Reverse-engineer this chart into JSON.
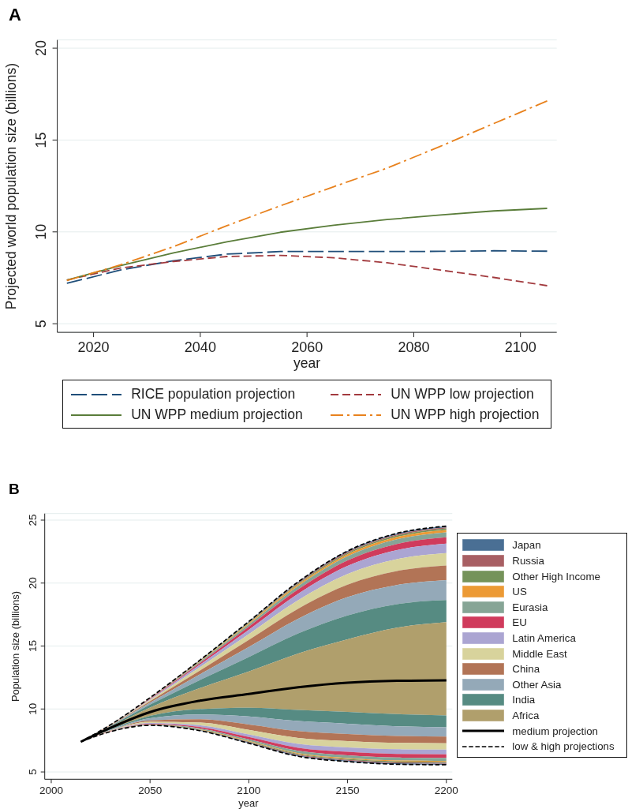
{
  "chart_data": [
    {
      "type": "line",
      "title": "A",
      "xlabel": "year",
      "ylabel": "Projected world population size (billions)",
      "x": [
        2015,
        2025,
        2035,
        2045,
        2055,
        2065,
        2075,
        2085,
        2095,
        2105
      ],
      "xlim": [
        2013.2,
        2106.8
      ],
      "ylim": [
        4.53,
        20.45
      ],
      "xticks": [
        2020,
        2040,
        2060,
        2080,
        2100
      ],
      "yticks": [
        5,
        10,
        15,
        20
      ],
      "grid": "y",
      "legend": "bottom",
      "series": [
        {
          "name": "RICE population projection",
          "color": "#1f4e79",
          "line_style": "longdash",
          "values": [
            7.2,
            7.92,
            8.43,
            8.79,
            8.93,
            8.93,
            8.93,
            8.94,
            8.97,
            8.95
          ]
        },
        {
          "name": "UN WPP low projection",
          "color": "#a23a3e",
          "line_style": "dashed",
          "values": [
            7.38,
            8.03,
            8.39,
            8.66,
            8.72,
            8.59,
            8.32,
            7.92,
            7.52,
            7.07
          ]
        },
        {
          "name": "UN WPP medium projection",
          "color": "#5a7d3a",
          "line_style": "solid",
          "values": [
            7.38,
            8.16,
            8.86,
            9.46,
            9.98,
            10.36,
            10.67,
            10.92,
            11.14,
            11.28
          ]
        },
        {
          "name": "UN WPP high projection",
          "color": "#e8821e",
          "line_style": "dashdot",
          "values": [
            7.35,
            8.2,
            9.2,
            10.34,
            11.42,
            12.46,
            13.47,
            14.66,
            15.9,
            17.13
          ]
        }
      ]
    },
    {
      "type": "area",
      "title": "B",
      "xlabel": "year",
      "ylabel": "Population size (billions)",
      "x": [
        2015,
        2030,
        2050,
        2075,
        2100,
        2125,
        2150,
        2175,
        2200
      ],
      "xlim": [
        1996.7,
        2203
      ],
      "ylim": [
        4.42,
        25.52
      ],
      "xticks": [
        2000,
        2050,
        2100,
        2150,
        2200
      ],
      "yticks": [
        5,
        10,
        15,
        20,
        25
      ],
      "grid": "y",
      "legend": "right",
      "series": [
        {
          "name": "Japan",
          "color": "#4a6f94",
          "values": [
            null,
            null,
            null,
            null,
            null,
            null,
            null,
            null,
            null
          ],
          "lower": [
            7.4,
            8.75,
            10.89,
            13.82,
            16.9,
            20.03,
            22.47,
            23.86,
            24.42
          ],
          "upper": [
            7.4,
            8.75,
            10.9,
            13.85,
            16.95,
            20.1,
            22.55,
            23.95,
            24.52
          ]
        },
        {
          "name": "Russia",
          "color": "#a85f63",
          "values": [
            null,
            null,
            null,
            null,
            null,
            null,
            null,
            null,
            null
          ],
          "lower": [
            7.4,
            8.75,
            10.88,
            13.8,
            16.86,
            19.97,
            22.39,
            23.77,
            24.34
          ],
          "upper": [
            7.4,
            8.75,
            10.89,
            13.82,
            16.9,
            20.03,
            22.47,
            23.86,
            24.42
          ]
        },
        {
          "name": "Other High Income",
          "color": "#75935a",
          "values": [
            null,
            null,
            null,
            null,
            null,
            null,
            null,
            null,
            null
          ],
          "lower": [
            7.4,
            8.74,
            10.87,
            13.77,
            16.81,
            19.89,
            22.29,
            23.66,
            24.21
          ],
          "upper": [
            7.4,
            8.75,
            10.88,
            13.8,
            16.86,
            19.97,
            22.39,
            23.77,
            24.34
          ]
        },
        {
          "name": "US",
          "color": "#ec9a35",
          "values": [
            null,
            null,
            null,
            null,
            null,
            null,
            null,
            null,
            null
          ],
          "lower": [
            7.4,
            8.74,
            10.85,
            13.72,
            16.72,
            19.77,
            22.13,
            23.48,
            24.03
          ],
          "upper": [
            7.4,
            8.74,
            10.87,
            13.77,
            16.81,
            19.89,
            22.29,
            23.66,
            24.21
          ]
        },
        {
          "name": "Eurasia",
          "color": "#86a596",
          "values": [
            null,
            null,
            null,
            null,
            null,
            null,
            null,
            null,
            null
          ],
          "lower": [
            7.4,
            8.73,
            10.82,
            13.62,
            16.54,
            19.5,
            21.8,
            23.11,
            23.64
          ],
          "upper": [
            7.4,
            8.74,
            10.85,
            13.72,
            16.72,
            19.77,
            22.13,
            23.48,
            24.03
          ]
        },
        {
          "name": "EU",
          "color": "#d03b5c",
          "values": [
            null,
            null,
            null,
            null,
            null,
            null,
            null,
            null,
            null
          ],
          "lower": [
            7.4,
            8.72,
            10.77,
            13.49,
            16.29,
            19.15,
            21.36,
            22.62,
            23.13
          ],
          "upper": [
            7.4,
            8.73,
            10.82,
            13.62,
            16.54,
            19.5,
            21.8,
            23.11,
            23.64
          ]
        },
        {
          "name": "Latin America",
          "color": "#aba5d2",
          "values": [
            null,
            null,
            null,
            null,
            null,
            null,
            null,
            null,
            null
          ],
          "lower": [
            7.4,
            8.71,
            10.7,
            13.29,
            15.94,
            18.64,
            20.72,
            21.9,
            22.38
          ],
          "upper": [
            7.4,
            8.72,
            10.77,
            13.49,
            16.29,
            19.15,
            21.36,
            22.62,
            23.13
          ]
        },
        {
          "name": "Middle East",
          "color": "#d8d39c",
          "values": [
            null,
            null,
            null,
            null,
            null,
            null,
            null,
            null,
            null
          ],
          "lower": [
            7.4,
            8.69,
            10.61,
            13.03,
            15.48,
            17.97,
            19.88,
            20.96,
            21.4
          ],
          "upper": [
            7.4,
            8.71,
            10.7,
            13.29,
            15.94,
            18.64,
            20.72,
            21.9,
            22.38
          ]
        },
        {
          "name": "China",
          "color": "#b27456",
          "values": [
            null,
            null,
            null,
            null,
            null,
            null,
            null,
            null,
            null
          ],
          "lower": [
            7.4,
            8.66,
            10.5,
            12.73,
            14.93,
            17.17,
            18.89,
            19.85,
            20.24
          ],
          "upper": [
            7.4,
            8.69,
            10.61,
            13.03,
            15.48,
            17.97,
            19.88,
            20.96,
            21.4
          ]
        },
        {
          "name": "Other Asia",
          "color": "#94a9b8",
          "values": [
            null,
            null,
            null,
            null,
            null,
            null,
            null,
            null,
            null
          ],
          "lower": [
            7.4,
            8.63,
            10.34,
            12.28,
            14.13,
            16.0,
            17.43,
            18.33,
            18.65
          ],
          "upper": [
            7.4,
            8.66,
            10.5,
            12.73,
            14.93,
            17.17,
            18.89,
            19.85,
            20.24
          ]
        },
        {
          "name": "India",
          "color": "#568b82",
          "values": [
            null,
            null,
            null,
            null,
            null,
            null,
            null,
            null,
            null
          ],
          "lower": [
            7.4,
            8.58,
            10.11,
            11.64,
            12.98,
            14.41,
            15.54,
            16.46,
            16.89
          ],
          "upper": [
            7.4,
            8.63,
            10.34,
            12.28,
            14.13,
            16.0,
            17.43,
            18.33,
            18.65
          ]
        },
        {
          "name": "Africa",
          "color": "#b09f6c",
          "values": [
            null,
            null,
            null,
            null,
            null,
            null,
            null,
            null,
            null
          ],
          "lower": [
            7.4,
            8.42,
            9.46,
            9.99,
            10.1,
            9.92,
            9.77,
            9.59,
            9.48
          ],
          "upper": [
            7.4,
            8.58,
            10.11,
            11.64,
            12.98,
            14.41,
            15.54,
            16.46,
            16.89
          ]
        },
        {
          "color": "#568b83",
          "values": [
            null,
            null,
            null,
            null,
            null,
            null,
            null,
            null,
            null
          ],
          "lower": [
            7.4,
            8.36,
            9.27,
            9.57,
            9.41,
            9.04,
            8.83,
            8.63,
            8.54
          ],
          "upper": [
            7.4,
            8.42,
            9.46,
            9.99,
            10.1,
            9.92,
            9.77,
            9.59,
            9.48
          ]
        },
        {
          "color": "#94a9b9",
          "values": [
            null,
            null,
            null,
            null,
            null,
            null,
            null,
            null,
            null
          ],
          "lower": [
            7.4,
            8.31,
            9.1,
            9.18,
            8.77,
            8.24,
            8.01,
            7.86,
            7.81
          ],
          "upper": [
            7.4,
            8.36,
            9.27,
            9.57,
            9.41,
            9.04,
            8.83,
            8.63,
            8.54
          ]
        },
        {
          "color": "#b27457",
          "values": [
            null,
            null,
            null,
            null,
            null,
            null,
            null,
            null,
            null
          ],
          "lower": [
            7.4,
            8.28,
            8.98,
            8.92,
            8.34,
            7.7,
            7.45,
            7.31,
            7.28
          ],
          "upper": [
            7.4,
            8.31,
            9.1,
            9.18,
            8.77,
            8.24,
            8.01,
            7.86,
            7.81
          ]
        },
        {
          "color": "#d8d39d",
          "values": [
            null,
            null,
            null,
            null,
            null,
            null,
            null,
            null,
            null
          ],
          "lower": [
            7.4,
            8.25,
            8.89,
            8.71,
            7.98,
            7.23,
            6.95,
            6.8,
            6.78
          ],
          "upper": [
            7.4,
            8.28,
            8.98,
            8.92,
            8.34,
            7.7,
            7.45,
            7.31,
            7.28
          ]
        },
        {
          "color": "#aba5d3",
          "values": [
            null,
            null,
            null,
            null,
            null,
            null,
            null,
            null,
            null
          ],
          "lower": [
            7.4,
            8.24,
            8.83,
            8.57,
            7.77,
            6.92,
            6.6,
            6.43,
            6.4
          ],
          "upper": [
            7.4,
            8.25,
            8.89,
            8.71,
            7.98,
            7.23,
            6.95,
            6.8,
            6.78
          ]
        },
        {
          "color": "#d03b5d",
          "values": [
            null,
            null,
            null,
            null,
            null,
            null,
            null,
            null,
            null
          ],
          "lower": [
            7.4,
            8.22,
            8.78,
            8.47,
            7.59,
            6.68,
            6.32,
            6.14,
            6.11
          ],
          "upper": [
            7.4,
            8.24,
            8.83,
            8.57,
            7.77,
            6.92,
            6.6,
            6.43,
            6.4
          ]
        },
        {
          "color": "#86a597",
          "values": [
            null,
            null,
            null,
            null,
            null,
            null,
            null,
            null,
            null
          ],
          "lower": [
            7.4,
            8.21,
            8.75,
            8.39,
            7.46,
            6.49,
            6.1,
            5.91,
            5.87
          ],
          "upper": [
            7.4,
            8.22,
            8.78,
            8.47,
            7.59,
            6.68,
            6.32,
            6.14,
            6.11
          ]
        },
        {
          "color": "#ec9a36",
          "values": [
            null,
            null,
            null,
            null,
            null,
            null,
            null,
            null,
            null
          ],
          "lower": [
            7.4,
            8.21,
            8.74,
            8.36,
            7.41,
            6.43,
            6.03,
            5.84,
            5.8
          ],
          "upper": [
            7.4,
            8.21,
            8.75,
            8.39,
            7.46,
            6.49,
            6.1,
            5.91,
            5.87
          ]
        },
        {
          "color": "#75935b",
          "values": [
            null,
            null,
            null,
            null,
            null,
            null,
            null,
            null,
            null
          ],
          "lower": [
            7.4,
            8.21,
            8.72,
            8.33,
            7.37,
            6.36,
            5.96,
            5.76,
            5.72
          ],
          "upper": [
            7.4,
            8.21,
            8.74,
            8.36,
            7.41,
            6.43,
            6.03,
            5.84,
            5.8
          ]
        },
        {
          "color": "#a85f64",
          "values": [
            null,
            null,
            null,
            null,
            null,
            null,
            null,
            null,
            null
          ],
          "lower": [
            7.4,
            8.2,
            8.71,
            8.31,
            7.33,
            6.31,
            5.9,
            5.69,
            5.65
          ],
          "upper": [
            7.4,
            8.21,
            8.72,
            8.33,
            7.37,
            6.36,
            5.96,
            5.76,
            5.72
          ]
        },
        {
          "color": "#4a6f95",
          "values": [
            null,
            null,
            null,
            null,
            null,
            null,
            null,
            null,
            null
          ],
          "lower": [
            7.4,
            8.2,
            8.7,
            8.28,
            7.28,
            6.24,
            5.82,
            5.61,
            5.57
          ],
          "upper": [
            7.4,
            8.2,
            8.71,
            8.31,
            7.33,
            6.31,
            5.9,
            5.69,
            5.65
          ]
        },
        {
          "type": "line",
          "name": "medium projection",
          "color": "#000000",
          "line_style": "solid",
          "values": [
            7.4,
            8.5,
            9.75,
            10.65,
            11.19,
            11.73,
            12.09,
            12.24,
            12.28
          ]
        },
        {
          "type": "line",
          "name": "low & high projections",
          "color": "#000000",
          "line_style": "dashed",
          "values": [
            7.4,
            8.75,
            10.9,
            13.85,
            16.95,
            20.1,
            22.55,
            23.95,
            24.52
          ]
        },
        {
          "type": "line",
          "color": "#000000",
          "line_style": "dashed",
          "values": [
            7.4,
            8.2,
            8.7,
            8.28,
            7.28,
            6.24,
            5.82,
            5.61,
            5.57
          ]
        }
      ]
    }
  ]
}
